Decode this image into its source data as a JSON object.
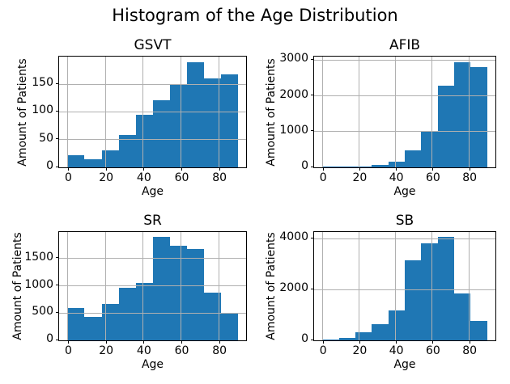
{
  "figure": {
    "title": "Histogram of the Age Distribution"
  },
  "colors": {
    "bar": "#1f77b4",
    "grid": "#b0b0b0",
    "text": "#000000"
  },
  "chart_data": [
    {
      "type": "bar",
      "title": "GSVT",
      "xlabel": "Age",
      "ylabel": "Amount of Patients",
      "bin_start": 0,
      "bin_width": 9,
      "counts": [
        22,
        15,
        31,
        58,
        94,
        121,
        150,
        190,
        160,
        168
      ],
      "xticks": [
        0,
        20,
        40,
        60,
        80
      ],
      "yticks": [
        0,
        50,
        100,
        150
      ],
      "xlim": [
        -4.5,
        94.5
      ],
      "ylim": [
        0,
        199.5
      ],
      "grid": true,
      "bar_color": "#1f77b4"
    },
    {
      "type": "bar",
      "title": "AFIB",
      "xlabel": "Age",
      "ylabel": "Amount of Patients",
      "bin_start": 0,
      "bin_width": 9,
      "counts": [
        30,
        10,
        25,
        60,
        150,
        480,
        1020,
        2290,
        2950,
        2810
      ],
      "xticks": [
        0,
        20,
        40,
        60,
        80
      ],
      "yticks": [
        0,
        1000,
        2000,
        3000
      ],
      "xlim": [
        -4.5,
        94.5
      ],
      "ylim": [
        0,
        3098
      ],
      "grid": true,
      "bar_color": "#1f77b4"
    },
    {
      "type": "bar",
      "title": "SR",
      "xlabel": "Age",
      "ylabel": "Amount of Patients",
      "bin_start": 0,
      "bin_width": 9,
      "counts": [
        590,
        430,
        670,
        960,
        1050,
        1890,
        1730,
        1680,
        870,
        510
      ],
      "xticks": [
        0,
        20,
        40,
        60,
        80
      ],
      "yticks": [
        0,
        500,
        1000,
        1500
      ],
      "xlim": [
        -4.5,
        94.5
      ],
      "ylim": [
        0,
        1985
      ],
      "grid": true,
      "bar_color": "#1f77b4"
    },
    {
      "type": "bar",
      "title": "SB",
      "xlabel": "Age",
      "ylabel": "Amount of Patients",
      "bin_start": 0,
      "bin_width": 9,
      "counts": [
        30,
        80,
        320,
        650,
        1190,
        3150,
        3830,
        4060,
        1830,
        770
      ],
      "xticks": [
        0,
        20,
        40,
        60,
        80
      ],
      "yticks": [
        0,
        2000,
        4000
      ],
      "xlim": [
        -4.5,
        94.5
      ],
      "ylim": [
        0,
        4263
      ],
      "grid": true,
      "bar_color": "#1f77b4"
    }
  ]
}
